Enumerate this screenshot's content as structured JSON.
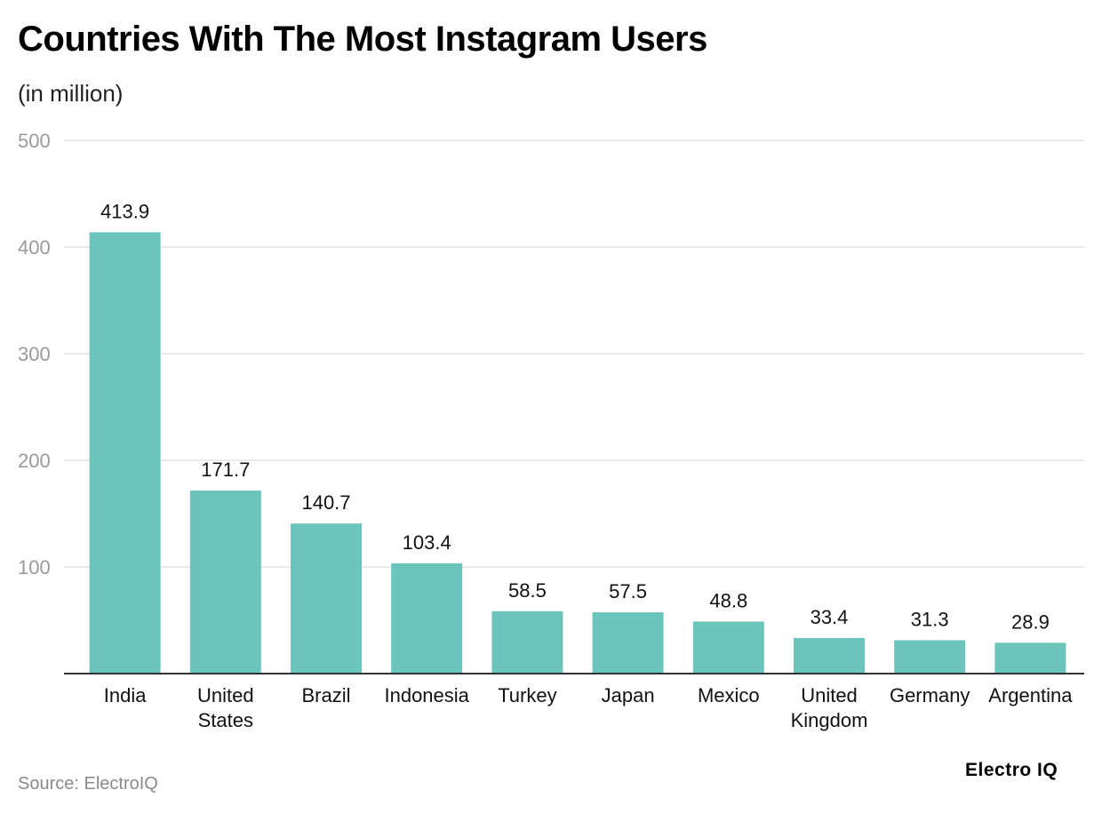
{
  "chart_data": {
    "type": "bar",
    "title": "Countries With The Most Instagram Users",
    "subtitle": "(in million)",
    "categories": [
      "India",
      "United States",
      "Brazil",
      "Indonesia",
      "Turkey",
      "Japan",
      "Mexico",
      "United Kingdom",
      "Germany",
      "Argentina"
    ],
    "category_lines": [
      [
        "India"
      ],
      [
        "United",
        "States"
      ],
      [
        "Brazil"
      ],
      [
        "Indonesia"
      ],
      [
        "Turkey"
      ],
      [
        "Japan"
      ],
      [
        "Mexico"
      ],
      [
        "United",
        "Kingdom"
      ],
      [
        "Germany"
      ],
      [
        "Argentina"
      ]
    ],
    "values": [
      413.9,
      171.7,
      140.7,
      103.4,
      58.5,
      57.5,
      48.8,
      33.4,
      31.3,
      28.9
    ],
    "value_labels": [
      "413.9",
      "171.7",
      "140.7",
      "103.4",
      "58.5",
      "57.5",
      "48.8",
      "33.4",
      "31.3",
      "28.9"
    ],
    "yticks": [
      100,
      200,
      300,
      400,
      500
    ],
    "ylim": [
      0,
      500
    ],
    "xlabel": "",
    "ylabel": "",
    "grid": true,
    "bar_color": "#6cc5bd"
  },
  "footer": {
    "source": "Source: ElectroIQ",
    "brand": "Electro IQ"
  }
}
